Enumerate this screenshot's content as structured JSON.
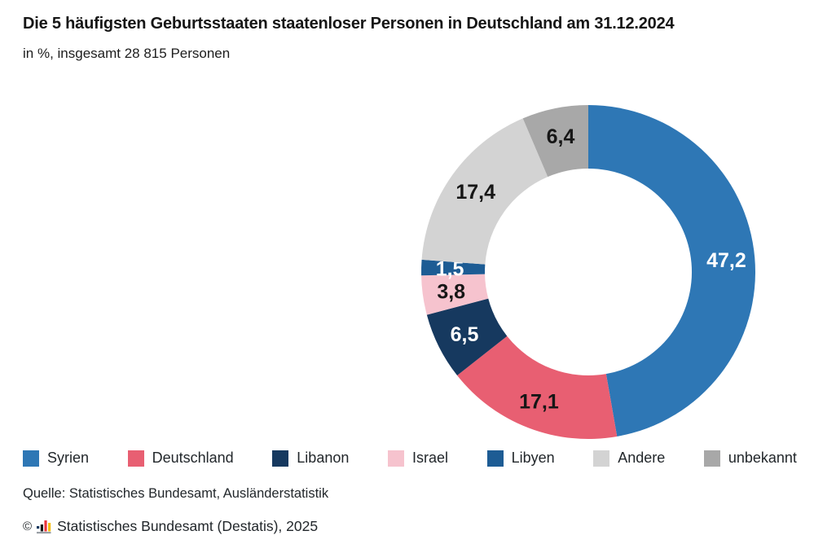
{
  "chart_data": {
    "type": "pie",
    "subtype": "donut",
    "title": "Die 5 häufigsten Geburtsstaaten staatenloser Personen in Deutschland am 31.12.2024",
    "subtitle": "in %, insgesamt 28 815 Personen",
    "unit": "%",
    "total_persons": "28 815",
    "start_angle_deg": 0,
    "direction": "clockwise",
    "legend_position": "bottom",
    "series": [
      {
        "label": "Syrien",
        "value": 47.2,
        "display": "47,2",
        "color": "#2e77b5",
        "label_color": "#ffffff"
      },
      {
        "label": "Deutschland",
        "value": 17.1,
        "display": "17,1",
        "color": "#e85f72",
        "label_color": "#161616"
      },
      {
        "label": "Libanon",
        "value": 6.5,
        "display": "6,5",
        "color": "#16395f",
        "label_color": "#ffffff"
      },
      {
        "label": "Israel",
        "value": 3.8,
        "display": "3,8",
        "color": "#f6c3ce",
        "label_color": "#161616"
      },
      {
        "label": "Libyen",
        "value": 1.5,
        "display": "1,5",
        "color": "#1d5c94",
        "label_color": "#ffffff"
      },
      {
        "label": "Andere",
        "value": 17.4,
        "display": "17,4",
        "color": "#d3d3d3",
        "label_color": "#161616"
      },
      {
        "label": "unbekannt",
        "value": 6.4,
        "display": "6,4",
        "color": "#a8a8a8",
        "label_color": "#161616"
      }
    ]
  },
  "footer": {
    "source": "Quelle: Statistisches Bundesamt, Ausländerstatistik",
    "copyright_symbol": "©",
    "copyright_text": "Statistisches Bundesamt (Destatis), 2025"
  },
  "style": {
    "background": "#ffffff",
    "logo_colors": {
      "dot": "#16395f",
      "bar1": "#161616",
      "bar2": "#e8343c",
      "bar3": "#f5bd0c",
      "baseline": "#9aa0a6"
    }
  }
}
